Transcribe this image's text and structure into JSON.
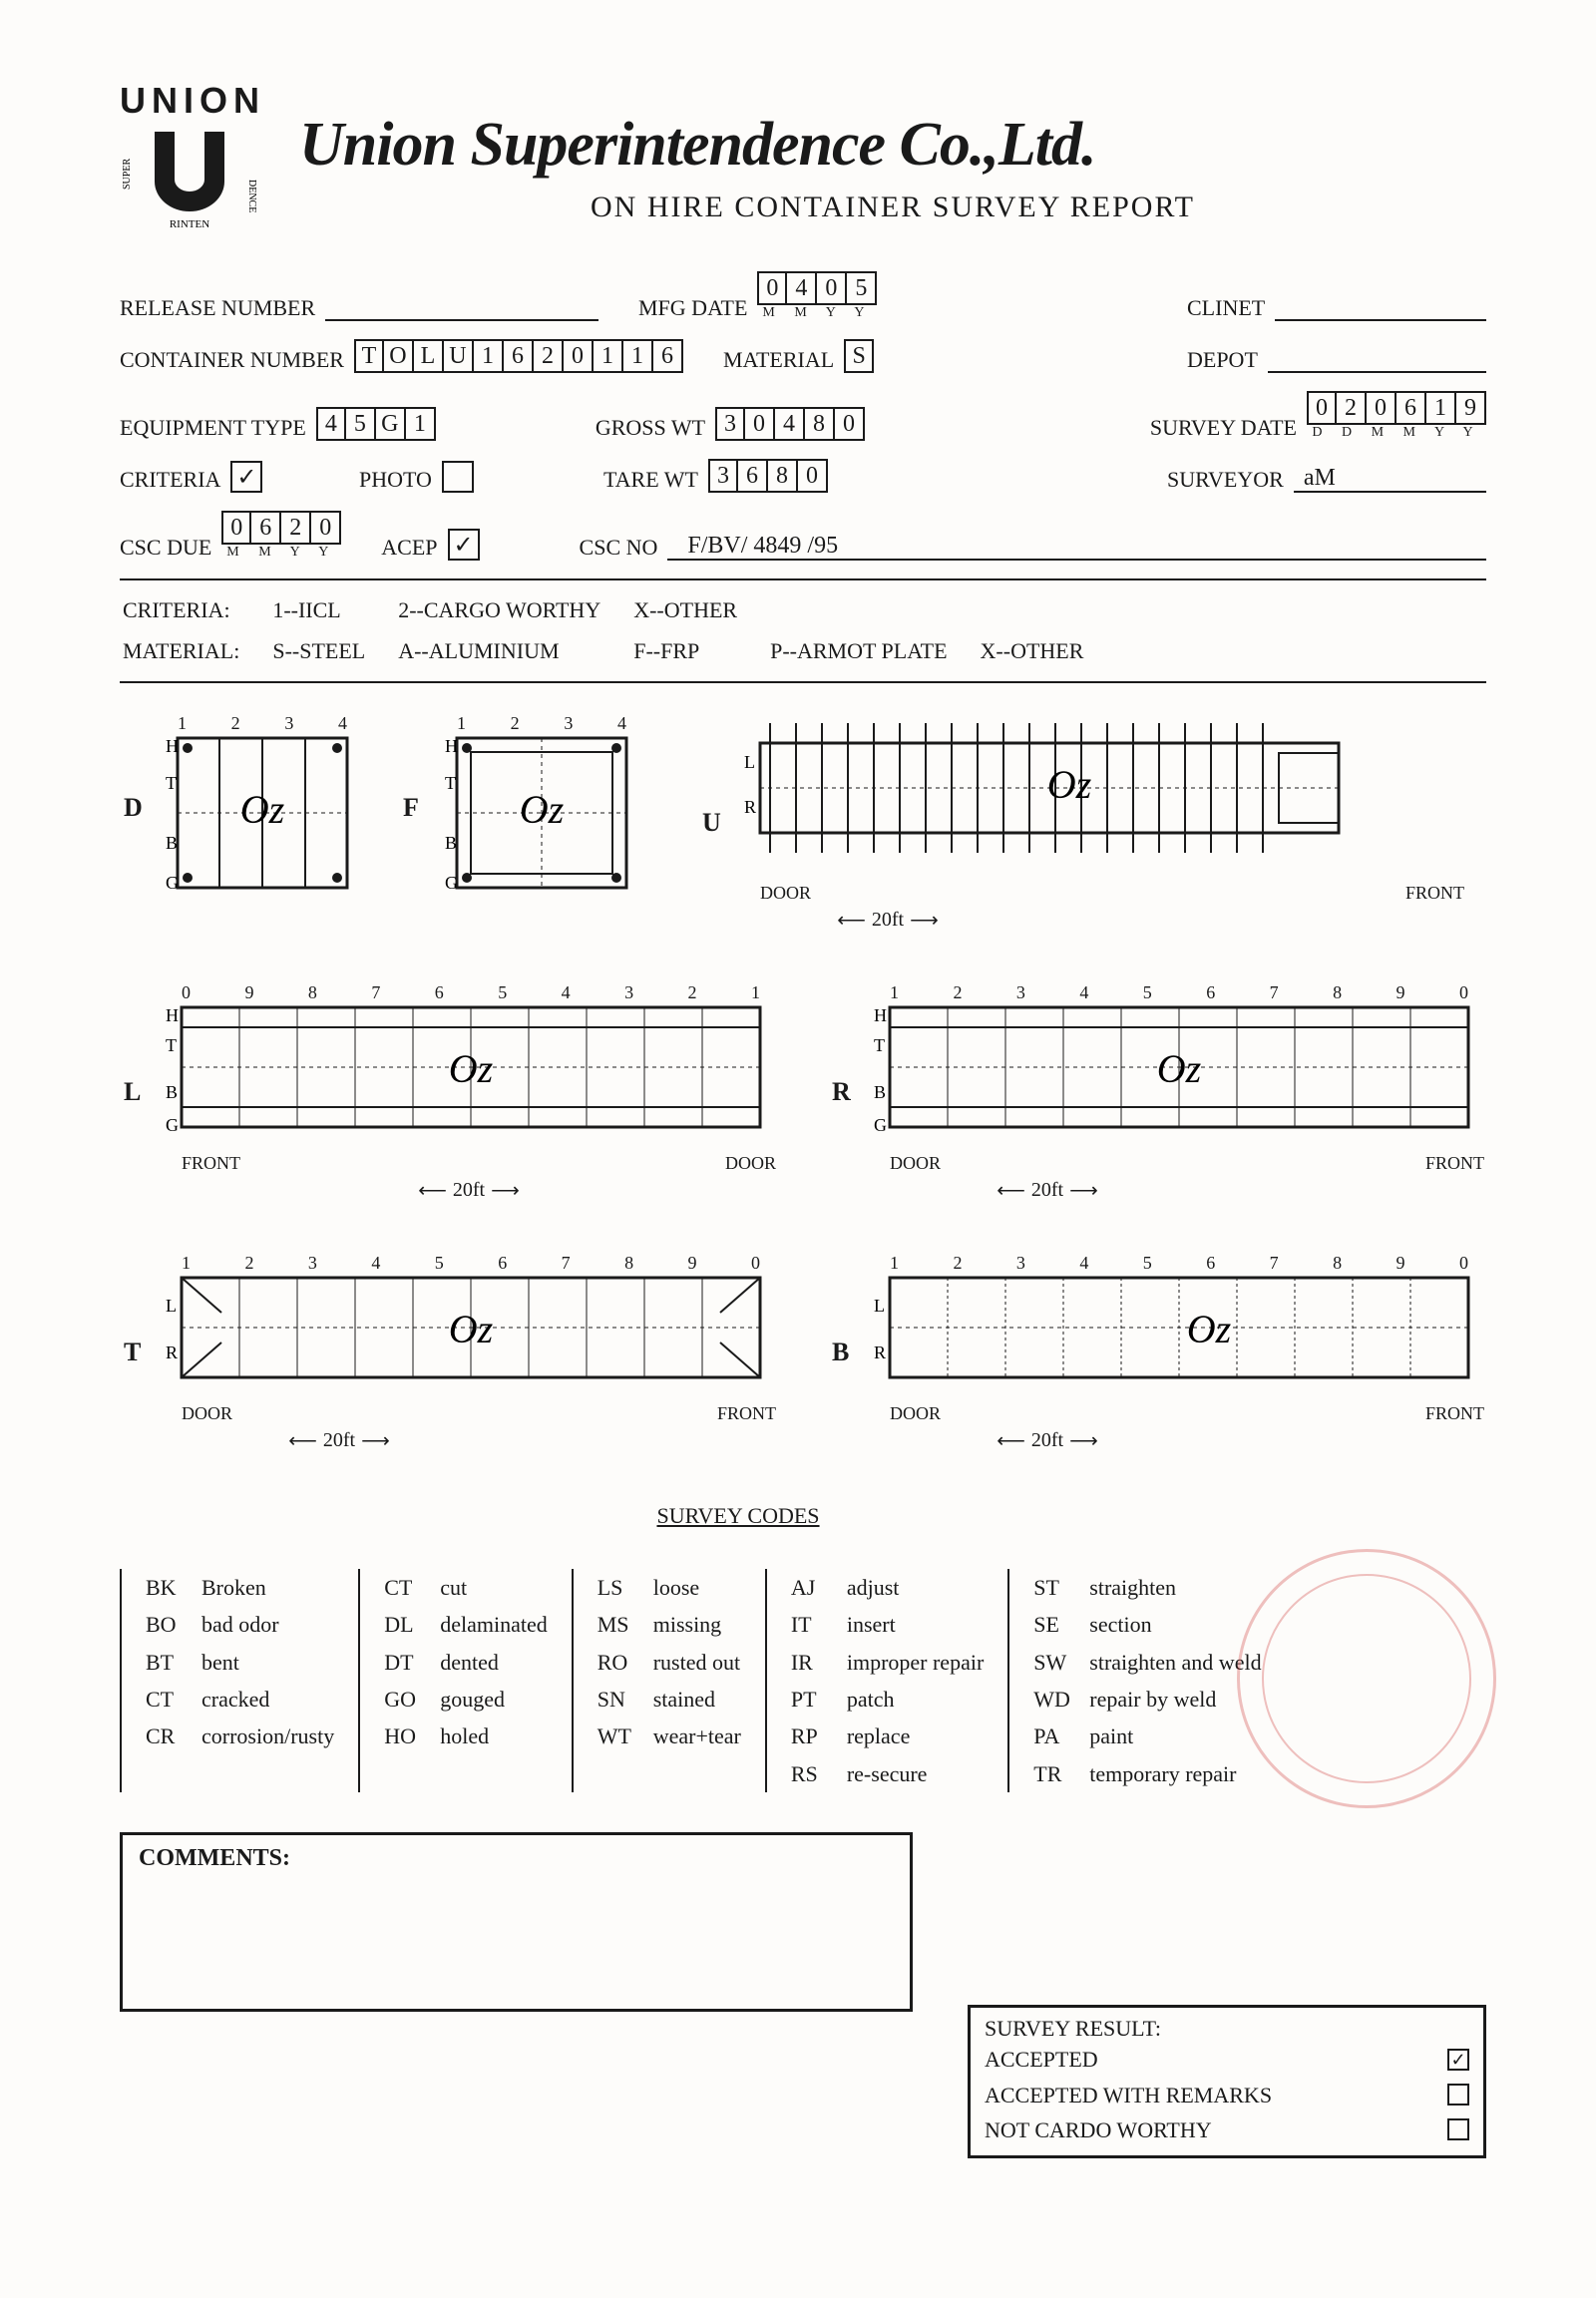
{
  "company": "Union Superintendence Co.,Ltd.",
  "subtitle": "ON HIRE CONTAINER SURVEY REPORT",
  "logo": {
    "top": "UNION",
    "arc": "SUPERINTENDENCE"
  },
  "fields": {
    "release_number": {
      "label": "RELEASE NUMBER",
      "value": ""
    },
    "container_number": {
      "label": "CONTAINER NUMBER",
      "value": "TOLU1620116"
    },
    "equipment_type": {
      "label": "EQUIPMENT TYPE",
      "value": "45G1"
    },
    "criteria": {
      "label": "CRITERIA",
      "checked": "✓"
    },
    "photo": {
      "label": "PHOTO",
      "checked": ""
    },
    "csc_due": {
      "label": "CSC DUE",
      "value": "0620",
      "sublabel": "M M Y Y"
    },
    "acep": {
      "label": "ACEP",
      "checked": "✓"
    },
    "mfg_date": {
      "label": "MFG DATE",
      "value": "0405",
      "sublabel": "M M Y Y"
    },
    "material": {
      "label": "MATERIAL",
      "value": "S"
    },
    "gross_wt": {
      "label": "GROSS WT",
      "value": "30480"
    },
    "tare_wt": {
      "label": "TARE WT",
      "value": "3680"
    },
    "csc_no": {
      "label": "CSC NO",
      "value": "F/BV/ 4849 /95"
    },
    "clinet": {
      "label": "CLINET",
      "value": ""
    },
    "depot": {
      "label": "DEPOT",
      "value": ""
    },
    "survey_date": {
      "label": "SURVEY DATE",
      "value": "020619",
      "sublabel": "D D M M Y Y"
    },
    "surveyor": {
      "label": "SURVEYOR",
      "value": "aM"
    }
  },
  "criteria_legend": {
    "label": "CRITERIA:",
    "items": [
      "1--IICL",
      "2--CARGO WORTHY",
      "X--OTHER"
    ]
  },
  "material_legend": {
    "label": "MATERIAL:",
    "items": [
      "S--STEEL",
      "A--ALUMINIUM",
      "F--FRP",
      "P--ARMOT PLATE",
      "X--OTHER"
    ]
  },
  "diagrams": {
    "foot_label": "20ft",
    "door_label": "DOOR",
    "front_label": "FRONT",
    "side_labels_htbg": [
      "H",
      "T",
      "B",
      "G"
    ],
    "side_labels_lr": [
      "L",
      "R"
    ],
    "panels": {
      "D": {
        "cols": [
          "1",
          "2",
          "3",
          "4"
        ]
      },
      "F": {
        "cols": [
          "1",
          "2",
          "3",
          "4"
        ]
      },
      "U": {
        "lr": true
      },
      "L": {
        "cols": [
          "0",
          "9",
          "8",
          "7",
          "6",
          "5",
          "4",
          "3",
          "2",
          "1"
        ]
      },
      "R": {
        "cols": [
          "1",
          "2",
          "3",
          "4",
          "5",
          "6",
          "7",
          "8",
          "9",
          "0"
        ]
      },
      "T": {
        "cols": [
          "1",
          "2",
          "3",
          "4",
          "5",
          "6",
          "7",
          "8",
          "9",
          "0"
        ],
        "lr": true
      },
      "B": {
        "cols": [
          "1",
          "2",
          "3",
          "4",
          "5",
          "6",
          "7",
          "8",
          "9",
          "0"
        ],
        "lr": true
      }
    }
  },
  "survey_codes": {
    "title": "SURVEY CODES",
    "cols": [
      [
        [
          "BK",
          "Broken"
        ],
        [
          "BO",
          "bad odor"
        ],
        [
          "BT",
          "bent"
        ],
        [
          "CT",
          "cracked"
        ],
        [
          "CR",
          "corrosion/rusty"
        ]
      ],
      [
        [
          "CT",
          "cut"
        ],
        [
          "DL",
          "delaminated"
        ],
        [
          "DT",
          "dented"
        ],
        [
          "GO",
          "gouged"
        ],
        [
          "HO",
          "holed"
        ]
      ],
      [
        [
          "LS",
          "loose"
        ],
        [
          "MS",
          "missing"
        ],
        [
          "RO",
          "rusted out"
        ],
        [
          "SN",
          "stained"
        ],
        [
          "WT",
          "wear+tear"
        ]
      ],
      [
        [
          "AJ",
          "adjust"
        ],
        [
          "IT",
          "insert"
        ],
        [
          "IR",
          "improper repair"
        ],
        [
          "PT",
          "patch"
        ],
        [
          "RP",
          "replace"
        ],
        [
          "RS",
          "re-secure"
        ]
      ],
      [
        [
          "ST",
          "straighten"
        ],
        [
          "SE",
          "section"
        ],
        [
          "SW",
          "straighten and weld"
        ],
        [
          "WD",
          "repair by weld"
        ],
        [
          "PA",
          "paint"
        ],
        [
          "TR",
          "temporary repair"
        ]
      ]
    ]
  },
  "comments": {
    "label": "COMMENTS:",
    "text": ""
  },
  "result": {
    "title": "SURVEY RESULT:",
    "rows": [
      {
        "label": "ACCEPTED",
        "checked": "✓"
      },
      {
        "label": "ACCEPTED WITH REMARKS",
        "checked": ""
      },
      {
        "label": "NOT CARDO WORTHY",
        "checked": ""
      }
    ]
  }
}
